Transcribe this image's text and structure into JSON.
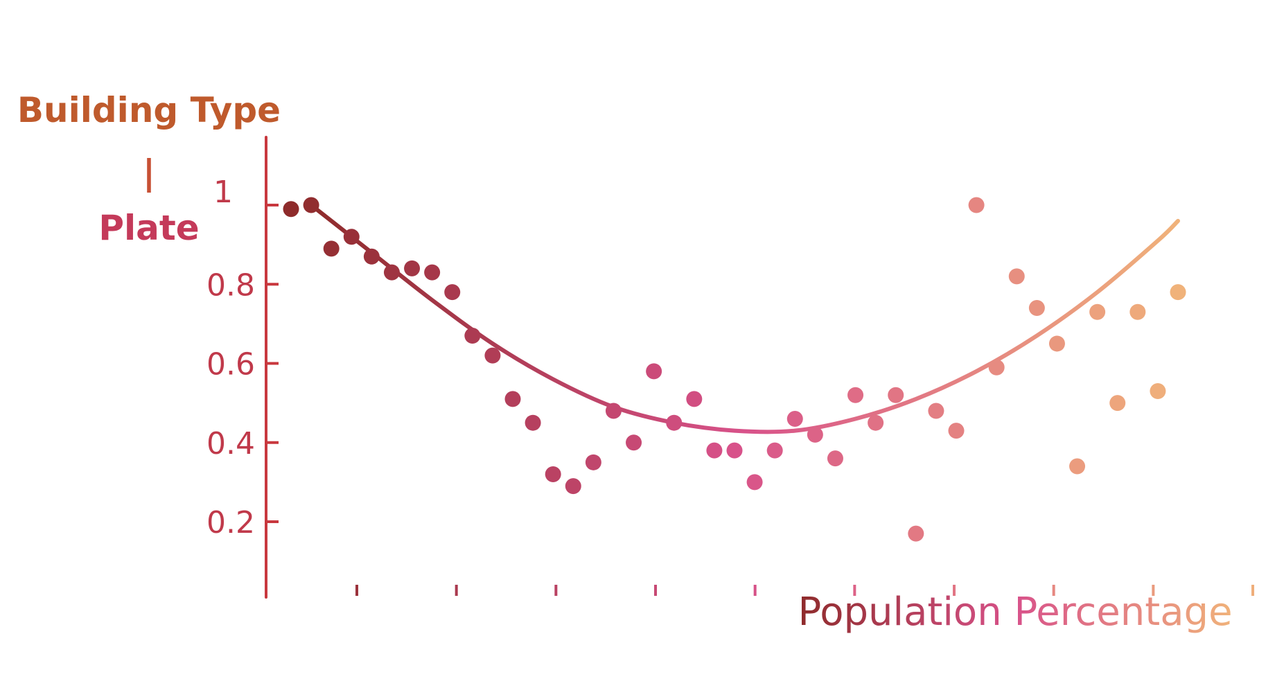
{
  "chart_data": {
    "type": "scatter",
    "title": "",
    "xlabel": "Population Percentage",
    "ylabel": [
      "Building Type",
      "Plate"
    ],
    "ylabel_separator": "|",
    "yticks": [
      {
        "value": 0.2,
        "label": "0.2"
      },
      {
        "value": 0.4,
        "label": "0.4"
      },
      {
        "value": 0.6,
        "label": "0.6"
      },
      {
        "value": 0.8,
        "label": "0.8"
      },
      {
        "value": 1.0,
        "label": "1"
      }
    ],
    "x_tick_count": 10,
    "xlim": [
      0,
      50
    ],
    "ylim": [
      0,
      1.1
    ],
    "grid": false,
    "legend": "none",
    "colors": {
      "start": "#8e2b2b",
      "mid": "#d8528a",
      "end": "#f0b27a",
      "axis": "#c8383e"
    },
    "points": [
      {
        "x": 1.0,
        "y": 0.99
      },
      {
        "x": 2.0,
        "y": 1.0
      },
      {
        "x": 3.0,
        "y": 0.89
      },
      {
        "x": 4.0,
        "y": 0.92
      },
      {
        "x": 5.0,
        "y": 0.87
      },
      {
        "x": 6.0,
        "y": 0.83
      },
      {
        "x": 7.0,
        "y": 0.84
      },
      {
        "x": 8.0,
        "y": 0.83
      },
      {
        "x": 9.0,
        "y": 0.78
      },
      {
        "x": 10.0,
        "y": 0.67
      },
      {
        "x": 11.0,
        "y": 0.62
      },
      {
        "x": 12.0,
        "y": 0.51
      },
      {
        "x": 13.0,
        "y": 0.45
      },
      {
        "x": 14.0,
        "y": 0.32
      },
      {
        "x": 15.0,
        "y": 0.29
      },
      {
        "x": 16.0,
        "y": 0.35
      },
      {
        "x": 17.0,
        "y": 0.48
      },
      {
        "x": 18.0,
        "y": 0.4
      },
      {
        "x": 19.0,
        "y": 0.58
      },
      {
        "x": 20.0,
        "y": 0.45
      },
      {
        "x": 21.0,
        "y": 0.51
      },
      {
        "x": 22.0,
        "y": 0.38
      },
      {
        "x": 23.0,
        "y": 0.38
      },
      {
        "x": 24.0,
        "y": 0.3
      },
      {
        "x": 25.0,
        "y": 0.38
      },
      {
        "x": 26.0,
        "y": 0.46
      },
      {
        "x": 27.0,
        "y": 0.42
      },
      {
        "x": 28.0,
        "y": 0.36
      },
      {
        "x": 29.0,
        "y": 0.52
      },
      {
        "x": 30.0,
        "y": 0.45
      },
      {
        "x": 31.0,
        "y": 0.52
      },
      {
        "x": 32.0,
        "y": 0.17
      },
      {
        "x": 33.0,
        "y": 0.48
      },
      {
        "x": 34.0,
        "y": 0.43
      },
      {
        "x": 35.0,
        "y": 1.0
      },
      {
        "x": 36.0,
        "y": 0.59
      },
      {
        "x": 37.0,
        "y": 0.82
      },
      {
        "x": 38.0,
        "y": 0.74
      },
      {
        "x": 39.0,
        "y": 0.65
      },
      {
        "x": 40.0,
        "y": 0.34
      },
      {
        "x": 41.0,
        "y": 0.73
      },
      {
        "x": 42.0,
        "y": 0.5
      },
      {
        "x": 43.0,
        "y": 0.73
      },
      {
        "x": 44.0,
        "y": 0.53
      },
      {
        "x": 45.0,
        "y": 0.78
      }
    ],
    "trend_line": [
      {
        "x": 2.0,
        "y": 1.0
      },
      {
        "x": 5.0,
        "y": 0.88
      },
      {
        "x": 8.0,
        "y": 0.76
      },
      {
        "x": 11.0,
        "y": 0.65
      },
      {
        "x": 14.0,
        "y": 0.56
      },
      {
        "x": 17.0,
        "y": 0.49
      },
      {
        "x": 20.0,
        "y": 0.45
      },
      {
        "x": 23.0,
        "y": 0.43
      },
      {
        "x": 26.0,
        "y": 0.43
      },
      {
        "x": 29.0,
        "y": 0.46
      },
      {
        "x": 32.0,
        "y": 0.51
      },
      {
        "x": 35.0,
        "y": 0.58
      },
      {
        "x": 38.0,
        "y": 0.67
      },
      {
        "x": 41.0,
        "y": 0.78
      },
      {
        "x": 44.0,
        "y": 0.91
      },
      {
        "x": 45.0,
        "y": 0.96
      }
    ]
  }
}
